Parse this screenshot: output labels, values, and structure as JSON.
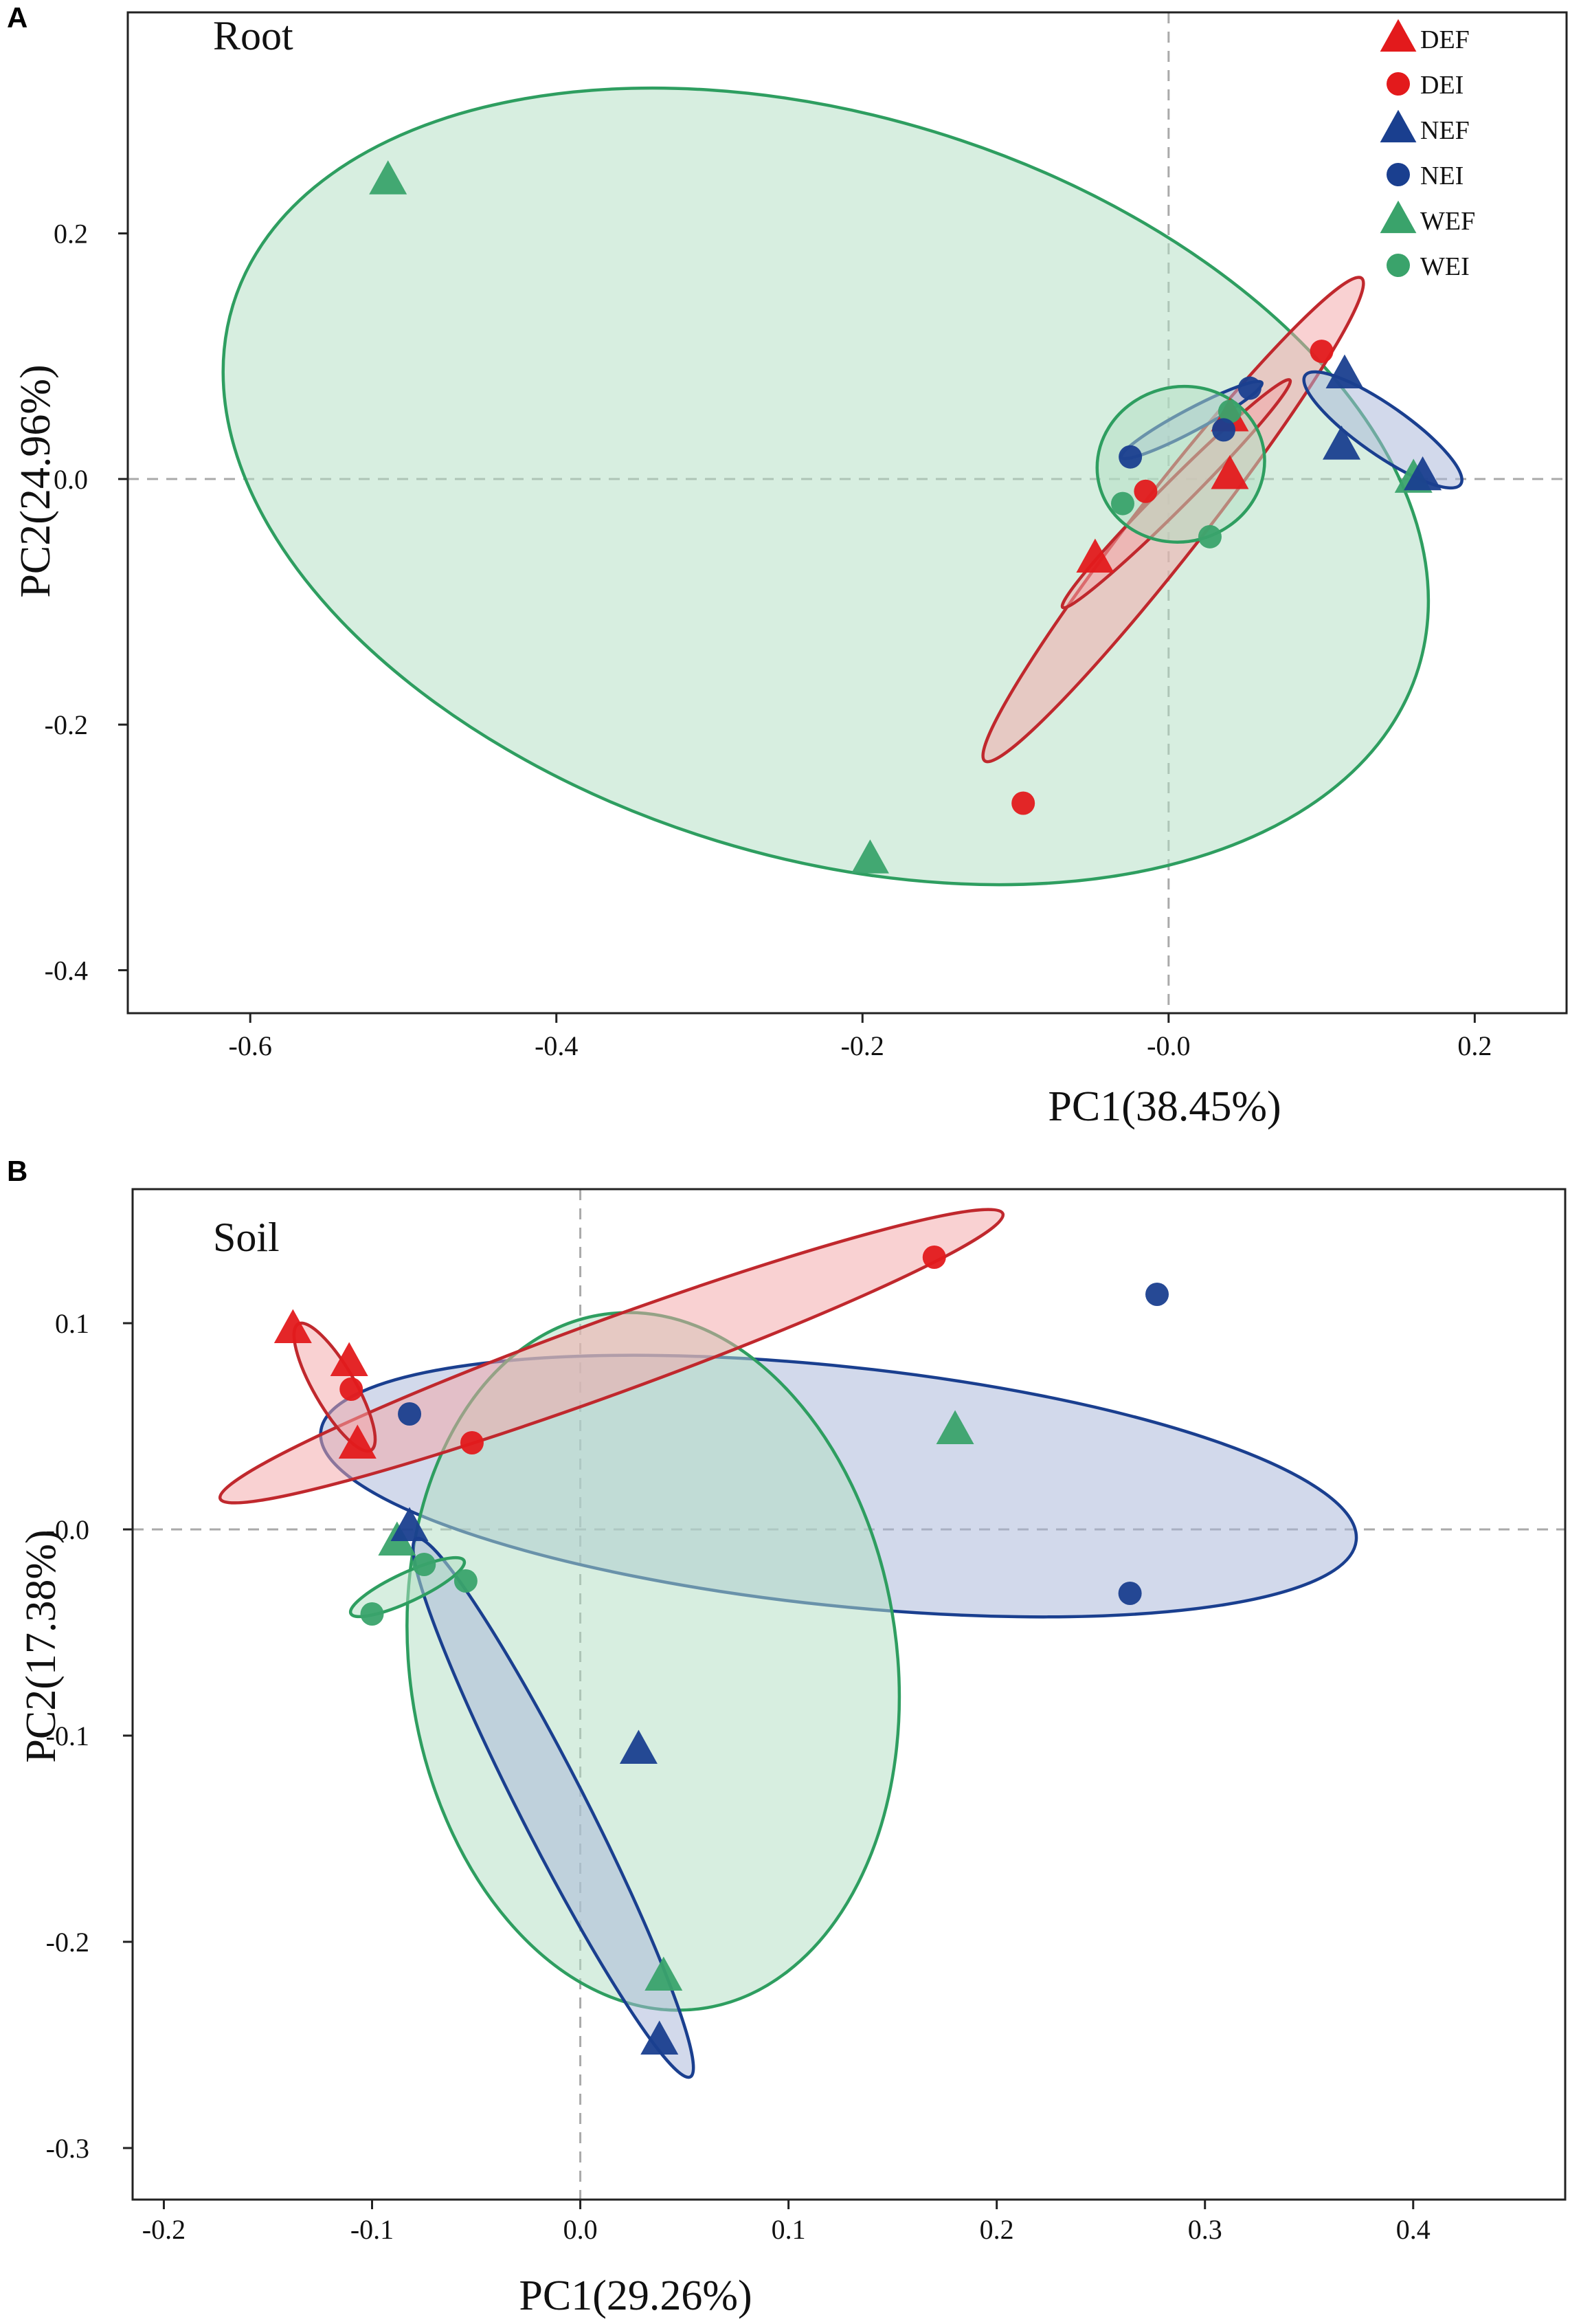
{
  "colors": {
    "DEF": "#e31a1c",
    "DEI": "#e31a1c",
    "NEF": "#1a3f8f",
    "NEI": "#1a3f8f",
    "WEF": "#3aa36b",
    "WEI": "#3aa36b",
    "ellipse_red": "#c0282d",
    "ellipse_blue": "#1a3f8f",
    "ellipse_green": "#2e9e60",
    "fill_red": "#f4a7a9",
    "fill_blue": "#a9b7d8",
    "fill_green": "#b3dfc4"
  },
  "chart_data": [
    {
      "type": "scatter",
      "panel": "A",
      "title": "Root",
      "xlabel": "PC1(38.45%)",
      "ylabel": "PC2(24.96%)",
      "xlim": [
        -0.68,
        0.26
      ],
      "ylim": [
        -0.435,
        0.38
      ],
      "xticks": [
        -0.6,
        -0.4,
        -0.2,
        0.0,
        0.2
      ],
      "xtick_labels": [
        "-0.6",
        "-0.4",
        "-0.2",
        "-0.0",
        "0.2"
      ],
      "yticks": [
        -0.4,
        -0.2,
        0.0,
        0.2
      ],
      "ytick_labels": [
        "-0.4",
        "-0.2",
        "0.0",
        "0.2"
      ],
      "legend": {
        "position": "top-right",
        "entries": [
          {
            "label": "DEF",
            "group": "DEF",
            "shape": "triangle"
          },
          {
            "label": "DEI",
            "group": "DEI",
            "shape": "circle"
          },
          {
            "label": "NEF",
            "group": "NEF",
            "shape": "triangle"
          },
          {
            "label": "NEI",
            "group": "NEI",
            "shape": "circle"
          },
          {
            "label": "WEF",
            "group": "WEF",
            "shape": "triangle"
          },
          {
            "label": "WEI",
            "group": "WEI",
            "shape": "circle"
          }
        ]
      },
      "ellipses": [
        {
          "group": "WEF",
          "cx": -0.224,
          "cy": -0.006,
          "rx": 0.405,
          "ry": 0.302,
          "angle": -17,
          "stroke": "ellipse_green",
          "fill": "fill_green"
        },
        {
          "group": "DEF",
          "cx": 0.003,
          "cy": -0.033,
          "rx": 0.2,
          "ry": 0.027,
          "angle": 52,
          "stroke": "ellipse_red",
          "fill": "fill_red"
        },
        {
          "group": "DEI",
          "cx": 0.005,
          "cy": -0.012,
          "rx": 0.105,
          "ry": 0.011,
          "angle": 45,
          "stroke": "ellipse_red",
          "fill": "fill_red"
        },
        {
          "group": "NEI",
          "cx": 0.015,
          "cy": 0.048,
          "rx": 0.052,
          "ry": 0.009,
          "angle": 28,
          "stroke": "ellipse_blue",
          "fill": "fill_blue"
        },
        {
          "group": "WEI",
          "cx": 0.008,
          "cy": 0.012,
          "rx": 0.055,
          "ry": 0.063,
          "angle": 15,
          "stroke": "ellipse_green",
          "fill": "fill_green"
        },
        {
          "group": "NEF",
          "cx": 0.14,
          "cy": 0.04,
          "rx": 0.062,
          "ry": 0.02,
          "angle": -35,
          "stroke": "ellipse_blue",
          "fill": "fill_blue"
        }
      ],
      "points": [
        {
          "group": "WEF",
          "shape": "triangle",
          "x": -0.51,
          "y": 0.243
        },
        {
          "group": "WEF",
          "shape": "triangle",
          "x": -0.195,
          "y": -0.31
        },
        {
          "group": "WEF",
          "shape": "triangle",
          "x": 0.16,
          "y": 0.0
        },
        {
          "group": "DEF",
          "shape": "triangle",
          "x": -0.048,
          "y": -0.065
        },
        {
          "group": "DEF",
          "shape": "triangle",
          "x": 0.04,
          "y": 0.003
        },
        {
          "group": "DEF",
          "shape": "triangle",
          "x": 0.04,
          "y": 0.05
        },
        {
          "group": "DEI",
          "shape": "circle",
          "x": -0.095,
          "y": -0.264
        },
        {
          "group": "DEI",
          "shape": "circle",
          "x": -0.015,
          "y": -0.01
        },
        {
          "group": "DEI",
          "shape": "circle",
          "x": 0.1,
          "y": 0.104
        },
        {
          "group": "WEI",
          "shape": "circle",
          "x": -0.03,
          "y": -0.02
        },
        {
          "group": "WEI",
          "shape": "circle",
          "x": 0.027,
          "y": -0.047
        },
        {
          "group": "WEI",
          "shape": "circle",
          "x": 0.04,
          "y": 0.055
        },
        {
          "group": "NEI",
          "shape": "circle",
          "x": -0.025,
          "y": 0.018
        },
        {
          "group": "NEI",
          "shape": "circle",
          "x": 0.036,
          "y": 0.04
        },
        {
          "group": "NEI",
          "shape": "circle",
          "x": 0.053,
          "y": 0.074
        },
        {
          "group": "NEF",
          "shape": "triangle",
          "x": 0.113,
          "y": 0.027
        },
        {
          "group": "NEF",
          "shape": "triangle",
          "x": 0.115,
          "y": 0.085
        },
        {
          "group": "NEF",
          "shape": "triangle",
          "x": 0.166,
          "y": 0.002
        }
      ]
    },
    {
      "type": "scatter",
      "panel": "B",
      "title": "Soil",
      "xlabel": "PC1(29.26%)",
      "ylabel": "PC2(17.38%)",
      "xlim": [
        -0.215,
        0.473
      ],
      "ylim": [
        -0.325,
        0.165
      ],
      "xticks": [
        -0.2,
        -0.1,
        0.0,
        0.1,
        0.2,
        0.3,
        0.4
      ],
      "xtick_labels": [
        "-0.2",
        "-0.1",
        "0.0",
        "0.1",
        "0.2",
        "0.3",
        "0.4"
      ],
      "yticks": [
        -0.3,
        -0.2,
        -0.1,
        0.0,
        0.1
      ],
      "ytick_labels": [
        "-0.3",
        "-0.2",
        "-0.1",
        "-0.0",
        "0.1"
      ],
      "ellipses": [
        {
          "group": "NEI",
          "cx": 0.124,
          "cy": 0.021,
          "rx": 0.25,
          "ry": 0.058,
          "angle": -6,
          "stroke": "ellipse_blue",
          "fill": "fill_blue"
        },
        {
          "group": "WEF",
          "cx": 0.035,
          "cy": -0.064,
          "rx": 0.117,
          "ry": 0.17,
          "angle": 8,
          "stroke": "ellipse_green",
          "fill": "fill_green"
        },
        {
          "group": "DEI",
          "cx": 0.015,
          "cy": 0.084,
          "rx": 0.2,
          "ry": 0.018,
          "angle": 20,
          "stroke": "ellipse_red",
          "fill": "fill_red"
        },
        {
          "group": "NEF",
          "cx": -0.013,
          "cy": -0.135,
          "rx": 0.145,
          "ry": 0.016,
          "angle": -63,
          "stroke": "ellipse_blue",
          "fill": "fill_blue"
        },
        {
          "group": "DEF",
          "cx": -0.118,
          "cy": 0.069,
          "rx": 0.035,
          "ry": 0.01,
          "angle": -60,
          "stroke": "ellipse_red",
          "fill": "fill_red"
        },
        {
          "group": "WEI",
          "cx": -0.083,
          "cy": -0.028,
          "rx": 0.03,
          "ry": 0.007,
          "angle": 25,
          "stroke": "ellipse_green",
          "fill": "fill_green"
        }
      ],
      "points": [
        {
          "group": "DEF",
          "shape": "triangle",
          "x": -0.138,
          "y": 0.097
        },
        {
          "group": "DEF",
          "shape": "triangle",
          "x": -0.111,
          "y": 0.081
        },
        {
          "group": "DEF",
          "shape": "triangle",
          "x": -0.107,
          "y": 0.041
        },
        {
          "group": "DEI",
          "shape": "circle",
          "x": -0.11,
          "y": 0.068
        },
        {
          "group": "DEI",
          "shape": "circle",
          "x": -0.052,
          "y": 0.042
        },
        {
          "group": "DEI",
          "shape": "circle",
          "x": 0.17,
          "y": 0.132
        },
        {
          "group": "NEI",
          "shape": "circle",
          "x": -0.082,
          "y": 0.056
        },
        {
          "group": "NEI",
          "shape": "circle",
          "x": 0.277,
          "y": 0.114
        },
        {
          "group": "NEI",
          "shape": "circle",
          "x": 0.264,
          "y": -0.031
        },
        {
          "group": "WEF",
          "shape": "triangle",
          "x": 0.18,
          "y": 0.048
        },
        {
          "group": "WEF",
          "shape": "triangle",
          "x": -0.088,
          "y": -0.006
        },
        {
          "group": "WEF",
          "shape": "triangle",
          "x": 0.04,
          "y": -0.217
        },
        {
          "group": "WEI",
          "shape": "circle",
          "x": -0.075,
          "y": -0.017
        },
        {
          "group": "WEI",
          "shape": "circle",
          "x": -0.055,
          "y": -0.025
        },
        {
          "group": "WEI",
          "shape": "circle",
          "x": -0.1,
          "y": -0.041
        },
        {
          "group": "NEF",
          "shape": "triangle",
          "x": -0.082,
          "y": 0.001
        },
        {
          "group": "NEF",
          "shape": "triangle",
          "x": 0.028,
          "y": -0.107
        },
        {
          "group": "NEF",
          "shape": "triangle",
          "x": 0.038,
          "y": -0.248
        }
      ]
    }
  ]
}
